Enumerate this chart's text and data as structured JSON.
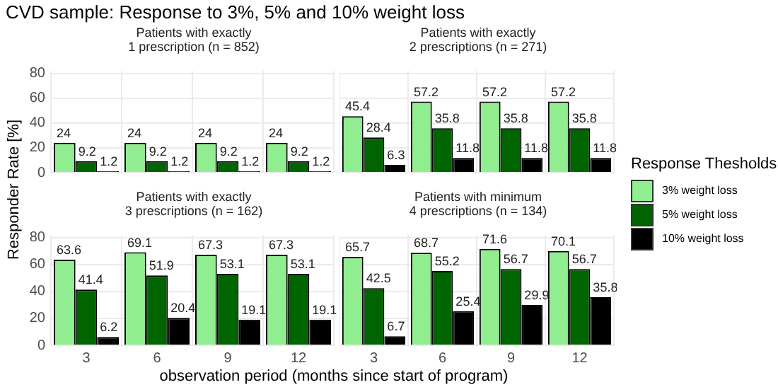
{
  "chart_data": [
    {
      "type": "bar",
      "title": "CVD sample: Response to 3%, 5% and 10% weight loss",
      "subtitle": "Patients with exactly\n1 prescription (n = 852)",
      "xlabel": "observation period (months since start of program)",
      "ylabel": "Responder Rate [%]",
      "legend_title": "Response Thesholds",
      "legend": "right",
      "categories": [
        "3",
        "6",
        "9",
        "12"
      ],
      "series": [
        {
          "name": "3% weight loss",
          "color": "#90ee90",
          "values": [
            24,
            24,
            24,
            24
          ]
        },
        {
          "name": "5% weight loss",
          "color": "#006400",
          "values": [
            9.2,
            9.2,
            9.2,
            9.2
          ]
        },
        {
          "name": "10% weight loss",
          "color": "#000000",
          "values": [
            1.2,
            1.2,
            1.2,
            1.2
          ]
        }
      ],
      "ylim": [
        0,
        82
      ],
      "yticks": [
        0,
        20,
        40,
        60,
        80
      ],
      "grid": true,
      "tick_labels": "y",
      "data_labels": true
    },
    {
      "type": "bar",
      "subtitle": "Patients with exactly\n2 prescriptions (n = 271)",
      "categories": [
        "3",
        "6",
        "9",
        "12"
      ],
      "series": [
        {
          "color": "#90ee90",
          "values": [
            45.4,
            57.2,
            57.2,
            57.2
          ]
        },
        {
          "color": "#006400",
          "values": [
            28.4,
            35.8,
            35.8,
            35.8
          ]
        },
        {
          "color": "#000000",
          "values": [
            6.3,
            11.8,
            11.8,
            11.8
          ]
        }
      ],
      "ylim": [
        0,
        82
      ],
      "yticks": [
        0,
        20,
        40,
        60,
        80
      ],
      "grid": true,
      "tick_labels": false,
      "data_labels": true
    },
    {
      "type": "bar",
      "subtitle": "Patients with exactly\n3 prescriptions (n = 162)",
      "categories": [
        "3",
        "6",
        "9",
        "12"
      ],
      "series": [
        {
          "color": "#90ee90",
          "values": [
            63.6,
            69.1,
            67.3,
            67.3
          ]
        },
        {
          "color": "#006400",
          "values": [
            41.4,
            51.9,
            53.1,
            53.1
          ]
        },
        {
          "color": "#000000",
          "values": [
            6.2,
            20.4,
            19.1,
            19.1
          ]
        }
      ],
      "ylim": [
        0,
        82
      ],
      "yticks": [
        0,
        20,
        40,
        60,
        80
      ],
      "grid": true,
      "data_labels": true
    },
    {
      "type": "bar",
      "subtitle": "Patients with minimum\n4 prescriptions (n = 134)",
      "categories": [
        "3",
        "6",
        "9",
        "12"
      ],
      "series": [
        {
          "color": "#90ee90",
          "values": [
            65.7,
            68.7,
            71.6,
            70.1
          ]
        },
        {
          "color": "#006400",
          "values": [
            42.5,
            55.2,
            56.7,
            56.7
          ]
        },
        {
          "color": "#000000",
          "values": [
            6.7,
            25.4,
            29.9,
            35.8
          ]
        }
      ],
      "ylim": [
        0,
        82
      ],
      "yticks": [
        0,
        20,
        40,
        60,
        80
      ],
      "grid": true,
      "tick_labels": "x",
      "data_labels": true
    }
  ]
}
